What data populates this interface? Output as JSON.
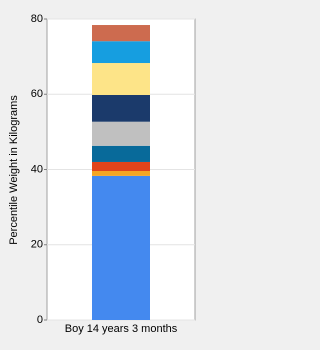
{
  "chart_data": {
    "type": "stacked_bar",
    "y_label": "Percentile Weight in Kilograms",
    "categories": [
      "Boy 14 years 3 months"
    ],
    "series": [
      {
        "color": "#4489ef",
        "values": [
          38.3
        ]
      },
      {
        "color": "#f5a623",
        "values": [
          1.3
        ]
      },
      {
        "color": "#e0441c",
        "values": [
          2.4
        ]
      },
      {
        "color": "#086a9a",
        "values": [
          4.3
        ]
      },
      {
        "color": "#c0c0c0",
        "values": [
          6.4
        ]
      },
      {
        "color": "#1b3a6b",
        "values": [
          7.1
        ]
      },
      {
        "color": "#fde488",
        "values": [
          8.5
        ]
      },
      {
        "color": "#169ee0",
        "values": [
          5.8
        ]
      },
      {
        "color": "#cd6b4f",
        "values": [
          4.3
        ]
      }
    ],
    "ylim": [
      0,
      80
    ],
    "yticks": [
      0,
      20,
      40,
      60,
      80
    ],
    "grid": true
  }
}
